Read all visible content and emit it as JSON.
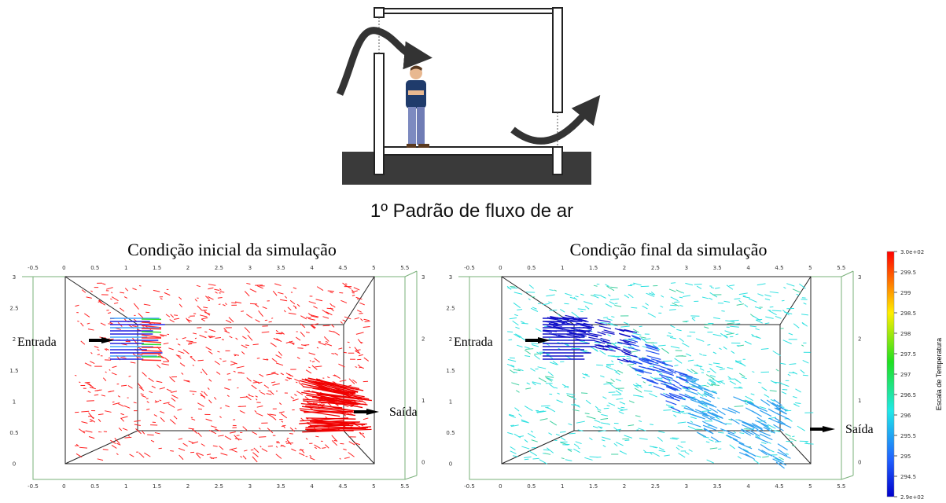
{
  "diagram": {
    "caption": "1º Padrão de fluxo de ar"
  },
  "plots": [
    {
      "title": "Condição inicial da simulação",
      "inlet_label": "Entrada",
      "outlet_label": "Saída",
      "x_ticks": [
        "-0.5",
        "0",
        "0.5",
        "1",
        "1.5",
        "2",
        "2.5",
        "3",
        "3.5",
        "4",
        "4.5",
        "5",
        "5.5"
      ],
      "y_ticks_left": [
        "3",
        "2.5",
        "2",
        "1.5",
        "1",
        "0.5",
        "0"
      ],
      "y_ticks_right": [
        "3",
        "2",
        "1",
        "0"
      ]
    },
    {
      "title": "Condição final da simulação",
      "inlet_label": "Entrada",
      "outlet_label": "Saída",
      "x_ticks": [
        "-0.5",
        "0",
        "0.5",
        "1",
        "1.5",
        "2",
        "2.5",
        "3",
        "3.5",
        "4",
        "4.5",
        "5",
        "5.5"
      ],
      "y_ticks_left": [
        "3",
        "2.5",
        "2",
        "1.5",
        "1",
        "0.5",
        "0"
      ],
      "y_ticks_right": [
        "3",
        "2",
        "1",
        "0"
      ]
    }
  ],
  "colorbar": {
    "title": "Escala de Temperatura",
    "ticks": [
      "3.0e+02",
      "299.5",
      "299",
      "298.5",
      "298",
      "297.5",
      "297",
      "296.5",
      "296",
      "295.5",
      "295",
      "294.5",
      "2.9e+02"
    ]
  }
}
